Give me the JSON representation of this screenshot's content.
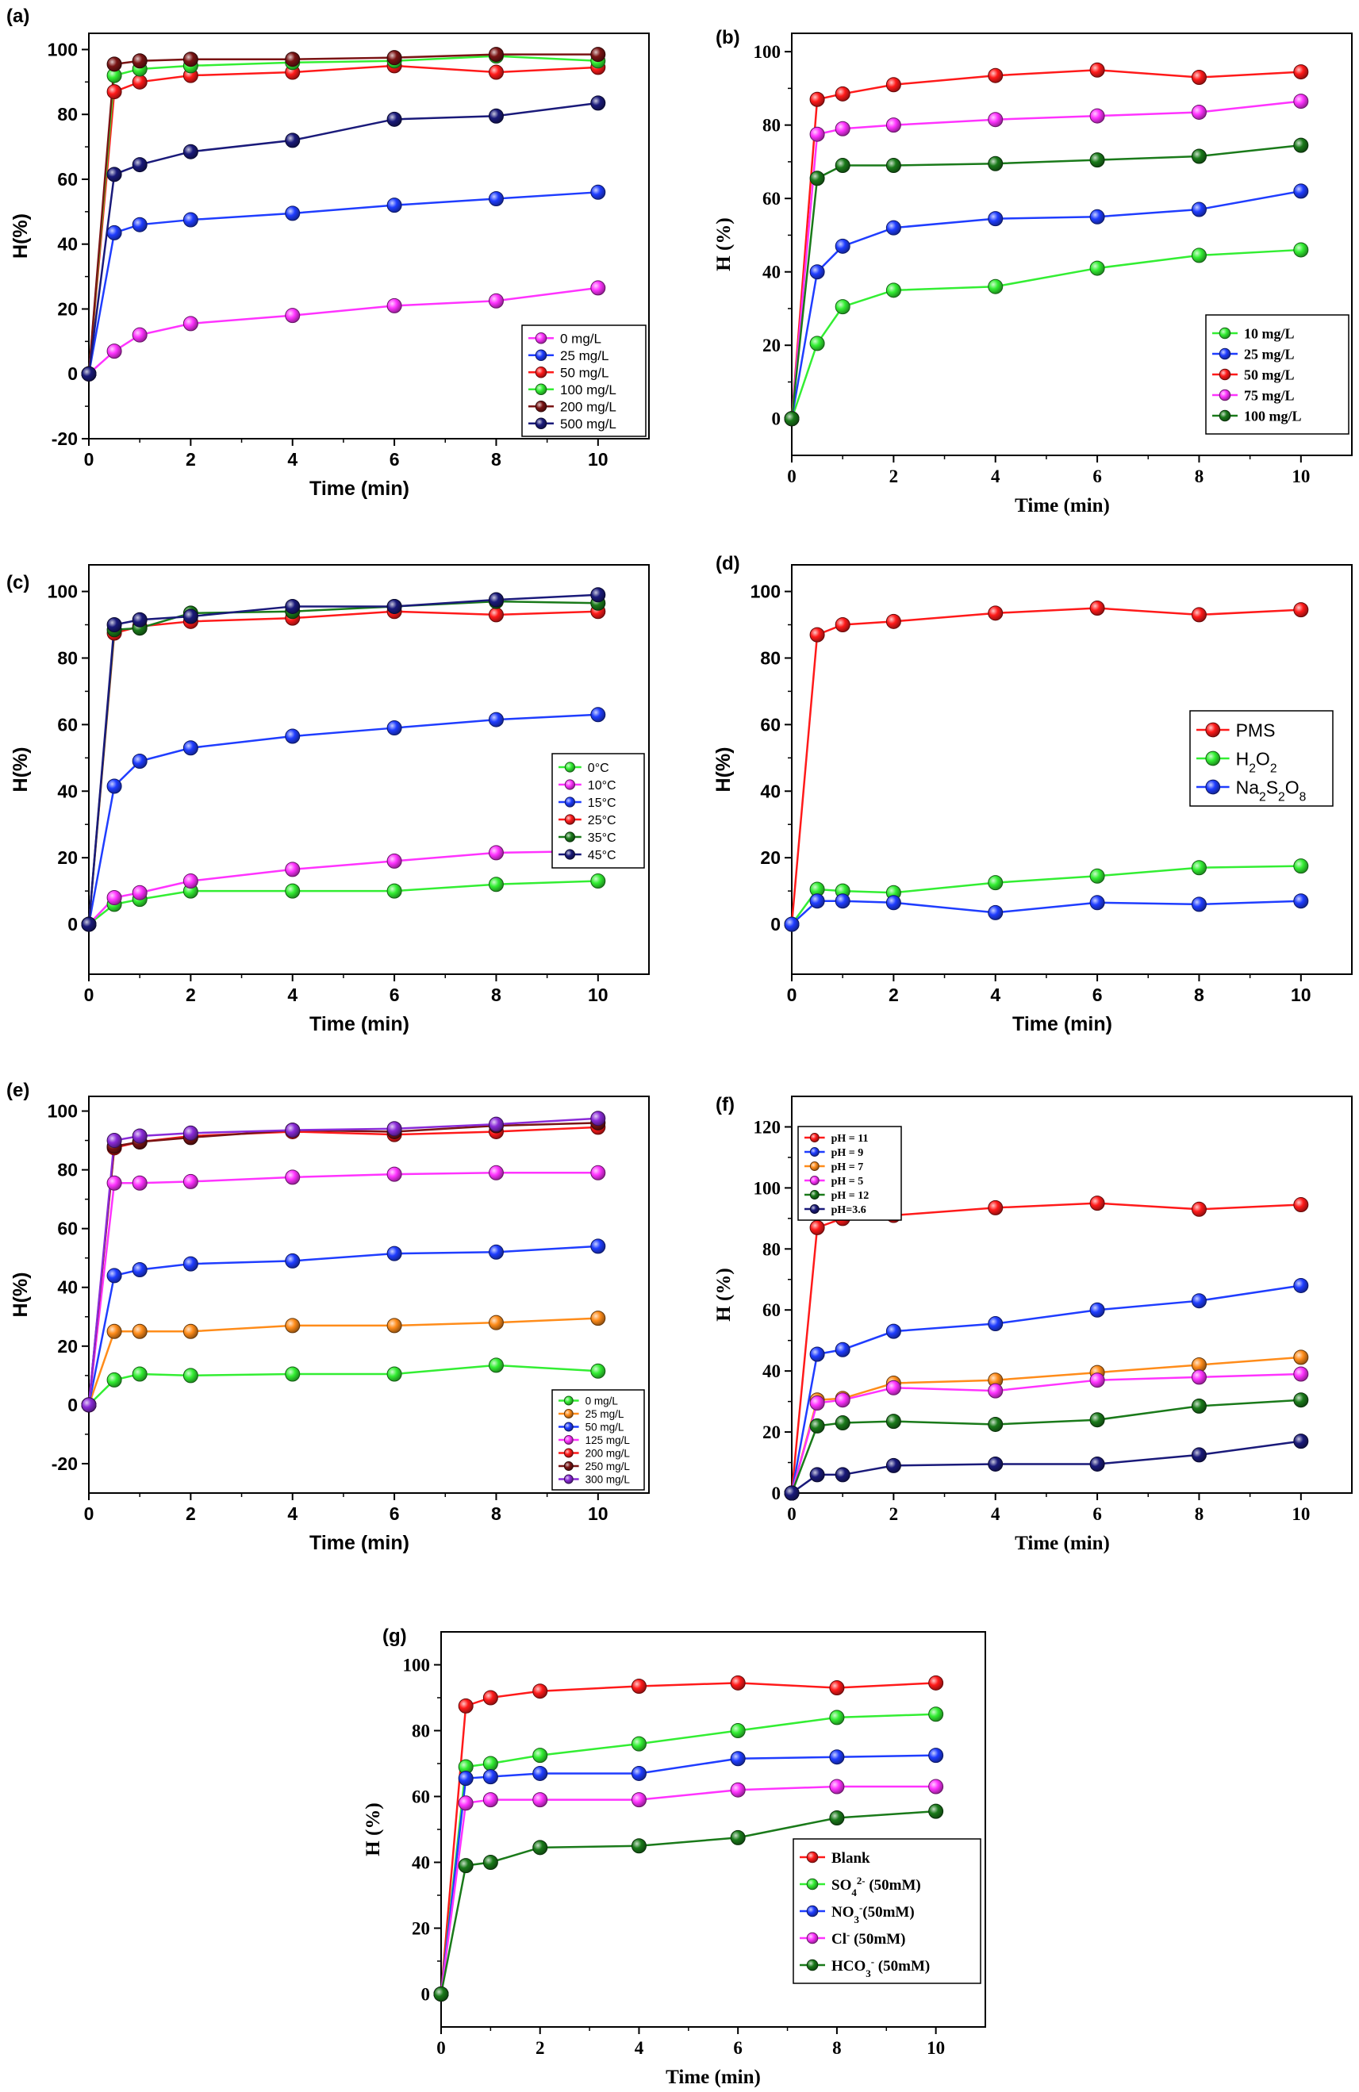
{
  "chart_data": [
    {
      "id": "a",
      "panel_label": "(a)",
      "type": "line",
      "xlabel": "Time (min)",
      "ylabel": "H(%)",
      "xlim": [
        0,
        11
      ],
      "ylim": [
        -20,
        105
      ],
      "xticks": [
        0,
        2,
        4,
        6,
        8,
        10
      ],
      "yticks": [
        -20,
        0,
        20,
        40,
        60,
        80,
        100
      ],
      "legend_position": "bottom-right",
      "x": [
        0,
        0.5,
        1,
        2,
        4,
        6,
        8,
        10
      ],
      "series": [
        {
          "name": "0 mg/L",
          "color": "#ff33ff",
          "values": [
            0,
            7,
            12,
            15.5,
            18,
            21,
            22.5,
            26.5
          ]
        },
        {
          "name": "25 mg/L",
          "color": "#1f3dff",
          "values": [
            0,
            43.5,
            46,
            47.5,
            49.5,
            52,
            54,
            56
          ]
        },
        {
          "name": "50 mg/L",
          "color": "#ff1a1a",
          "values": [
            0,
            87,
            90,
            92,
            93,
            95,
            93,
            94.5
          ]
        },
        {
          "name": "100 mg/L",
          "color": "#33ee33",
          "values": [
            0,
            92,
            94,
            95,
            96,
            96.5,
            98,
            96.5
          ]
        },
        {
          "name": "200 mg/L",
          "color": "#7a1414",
          "values": [
            0,
            95.5,
            96.5,
            97,
            97,
            97.5,
            98.5,
            98.5
          ]
        },
        {
          "name": "500 mg/L",
          "color": "#1a1a7a",
          "values": [
            0,
            61.5,
            64.5,
            68.5,
            72,
            78.5,
            79.5,
            83.5
          ]
        }
      ]
    },
    {
      "id": "b",
      "panel_label": "(b)",
      "type": "line",
      "xlabel": "Time (min)",
      "ylabel": "H (%)",
      "xlim": [
        0,
        11
      ],
      "ylim": [
        -10,
        105
      ],
      "xticks": [
        0,
        2,
        4,
        6,
        8,
        10
      ],
      "yticks": [
        0,
        20,
        40,
        60,
        80,
        100
      ],
      "legend_position": "bottom-right",
      "x": [
        0,
        0.5,
        1,
        2,
        4,
        6,
        8,
        10
      ],
      "series": [
        {
          "name": "10 mg/L",
          "color": "#33ee33",
          "values": [
            0,
            20.5,
            30.5,
            35,
            36,
            41,
            44.5,
            46
          ]
        },
        {
          "name": "25 mg/L",
          "color": "#1f3dff",
          "values": [
            0,
            40,
            47,
            52,
            54.5,
            55,
            57,
            62
          ]
        },
        {
          "name": "50 mg/L",
          "color": "#ff1a1a",
          "values": [
            0,
            87,
            88.5,
            91,
            93.5,
            95,
            93,
            94.5
          ]
        },
        {
          "name": "75 mg/L",
          "color": "#ff33ff",
          "values": [
            0,
            77.5,
            79,
            80,
            81.5,
            82.5,
            83.5,
            86.5
          ]
        },
        {
          "name": "100 mg/L",
          "color": "#1a7a1a",
          "values": [
            0,
            65.5,
            69,
            69,
            69.5,
            70.5,
            71.5,
            74.5
          ]
        }
      ]
    },
    {
      "id": "c",
      "panel_label": "(c)",
      "type": "line",
      "xlabel": "Time (min)",
      "ylabel": "H(%)",
      "xlim": [
        0,
        11
      ],
      "ylim": [
        -15,
        108
      ],
      "xticks": [
        0,
        2,
        4,
        6,
        8,
        10
      ],
      "yticks": [
        0,
        20,
        40,
        60,
        80,
        100
      ],
      "legend_position": "right",
      "x": [
        0,
        0.5,
        1,
        2,
        4,
        6,
        8,
        10
      ],
      "series": [
        {
          "name": "0°C",
          "color": "#33ee33",
          "values": [
            0,
            6,
            7.5,
            10,
            10,
            10,
            12,
            13
          ]
        },
        {
          "name": "10°C",
          "color": "#ff33ff",
          "values": [
            0,
            8,
            9.5,
            13,
            16.5,
            19,
            21.5,
            22
          ]
        },
        {
          "name": "15°C",
          "color": "#1f3dff",
          "values": [
            0,
            41.5,
            49,
            53,
            56.5,
            59,
            61.5,
            63
          ]
        },
        {
          "name": "25°C",
          "color": "#ff1a1a",
          "values": [
            0,
            87.5,
            89.5,
            91,
            92,
            94,
            93,
            94
          ]
        },
        {
          "name": "35°C",
          "color": "#1a7a1a",
          "values": [
            0,
            88.5,
            89,
            93.5,
            94,
            95.5,
            97,
            96.5
          ]
        },
        {
          "name": "45°C",
          "color": "#1a1a7a",
          "values": [
            0,
            90,
            91.5,
            92.5,
            95.5,
            95.5,
            97.5,
            99
          ]
        }
      ]
    },
    {
      "id": "d",
      "panel_label": "(d)",
      "type": "line",
      "xlabel": "Time (min)",
      "ylabel": "H(%)",
      "xlim": [
        0,
        11
      ],
      "ylim": [
        -15,
        108
      ],
      "xticks": [
        0,
        2,
        4,
        6,
        8,
        10
      ],
      "yticks": [
        0,
        20,
        40,
        60,
        80,
        100
      ],
      "legend_position": "right",
      "x": [
        0,
        0.5,
        1,
        2,
        4,
        6,
        8,
        10
      ],
      "series": [
        {
          "name": "PMS",
          "color": "#ff1a1a",
          "values": [
            0,
            87,
            90,
            91,
            93.5,
            95,
            93,
            94.5
          ]
        },
        {
          "name": "H2O2",
          "color": "#33ee33",
          "values": [
            0,
            10.5,
            10,
            9.5,
            12.5,
            14.5,
            17,
            17.5
          ]
        },
        {
          "name": "Na2S2O8",
          "color": "#1f3dff",
          "values": [
            0,
            7,
            7,
            6.5,
            3.5,
            6.5,
            6,
            7
          ]
        }
      ]
    },
    {
      "id": "e",
      "panel_label": "(e)",
      "type": "line",
      "xlabel": "Time (min)",
      "ylabel": "H(%)",
      "xlim": [
        0,
        11
      ],
      "ylim": [
        -30,
        105
      ],
      "xticks": [
        0,
        2,
        4,
        6,
        8,
        10
      ],
      "yticks": [
        -20,
        0,
        20,
        40,
        60,
        80,
        100
      ],
      "legend_position": "bottom-right",
      "x": [
        0,
        0.5,
        1,
        2,
        4,
        6,
        8,
        10
      ],
      "series": [
        {
          "name": "0 mg/L",
          "color": "#33ee33",
          "values": [
            0,
            8.5,
            10.5,
            10,
            10.5,
            10.5,
            13.5,
            11.5
          ]
        },
        {
          "name": "25 mg/L",
          "color": "#ff8c1a",
          "values": [
            0,
            25,
            25,
            25,
            27,
            27,
            28,
            29.5
          ]
        },
        {
          "name": "50 mg/L",
          "color": "#1f3dff",
          "values": [
            0,
            44,
            46,
            48,
            49,
            51.5,
            52,
            54
          ]
        },
        {
          "name": "125 mg/L",
          "color": "#ff33ff",
          "values": [
            0,
            75.5,
            75.5,
            76,
            77.5,
            78.5,
            79,
            79
          ]
        },
        {
          "name": "200 mg/L",
          "color": "#ff1a1a",
          "values": [
            0,
            87.5,
            89.5,
            91.5,
            93,
            92,
            93,
            94.5
          ]
        },
        {
          "name": "250 mg/L",
          "color": "#7a1414",
          "values": [
            0,
            88,
            89.5,
            91,
            93.5,
            93,
            95,
            96
          ]
        },
        {
          "name": "300 mg/L",
          "color": "#8a2bd8",
          "values": [
            0,
            90,
            91.5,
            92.5,
            93.5,
            94,
            95.5,
            97.5
          ]
        }
      ]
    },
    {
      "id": "f",
      "panel_label": "(f)",
      "type": "line",
      "xlabel": "Time (min)",
      "ylabel": "H (%)",
      "xlim": [
        0,
        11
      ],
      "ylim": [
        0,
        130
      ],
      "xticks": [
        0,
        2,
        4,
        6,
        8,
        10
      ],
      "yticks": [
        0,
        20,
        40,
        60,
        80,
        100,
        120
      ],
      "legend_position": "top-left",
      "x": [
        0,
        0.5,
        1,
        2,
        4,
        6,
        8,
        10
      ],
      "series": [
        {
          "name": "pH = 11",
          "color": "#ff1a1a",
          "values": [
            0,
            87,
            90,
            91,
            93.5,
            95,
            93,
            94.5
          ]
        },
        {
          "name": "pH = 9",
          "color": "#1f3dff",
          "values": [
            0,
            45.5,
            47,
            53,
            55.5,
            60,
            63,
            68
          ]
        },
        {
          "name": "pH = 7",
          "color": "#ff8c1a",
          "values": [
            0,
            30.5,
            31,
            36,
            37,
            39.5,
            42,
            44.5
          ]
        },
        {
          "name": "pH = 5",
          "color": "#ff33ff",
          "values": [
            0,
            29.5,
            30.5,
            34.5,
            33.5,
            37,
            38,
            39
          ]
        },
        {
          "name": "pH = 12",
          "color": "#1a7a1a",
          "values": [
            0,
            22,
            23,
            23.5,
            22.5,
            24,
            28.5,
            30.5
          ]
        },
        {
          "name": "pH=3.6",
          "color": "#1a1a7a",
          "values": [
            0,
            6,
            6,
            9,
            9.5,
            9.5,
            12.5,
            17
          ]
        }
      ]
    },
    {
      "id": "g",
      "panel_label": "(g)",
      "type": "line",
      "xlabel": "Time (min)",
      "ylabel": "H (%)",
      "xlim": [
        0,
        11
      ],
      "ylim": [
        -10,
        110
      ],
      "xticks": [
        0,
        2,
        4,
        6,
        8,
        10
      ],
      "yticks": [
        0,
        20,
        40,
        60,
        80,
        100
      ],
      "legend_position": "bottom-right",
      "x": [
        0,
        0.5,
        1,
        2,
        4,
        6,
        8,
        10
      ],
      "series": [
        {
          "name": "Blank",
          "color": "#ff1a1a",
          "values": [
            0,
            87.5,
            90,
            92,
            93.5,
            94.5,
            93,
            94.5
          ]
        },
        {
          "name": "SO42- (50mM)",
          "color": "#33ee33",
          "values": [
            0,
            69,
            70,
            72.5,
            76,
            80,
            84,
            85
          ]
        },
        {
          "name": "NO3-(50mM)",
          "color": "#1f3dff",
          "values": [
            0,
            65.5,
            66,
            67,
            67,
            71.5,
            72,
            72.5
          ]
        },
        {
          "name": "Cl- (50mM)",
          "color": "#ff33ff",
          "values": [
            0,
            58,
            59,
            59,
            59,
            62,
            63,
            63
          ]
        },
        {
          "name": "HCO3- (50mM)",
          "color": "#1a7a1a",
          "values": [
            0,
            39,
            40,
            44.5,
            45,
            47.5,
            53.5,
            55.5
          ]
        }
      ]
    }
  ]
}
